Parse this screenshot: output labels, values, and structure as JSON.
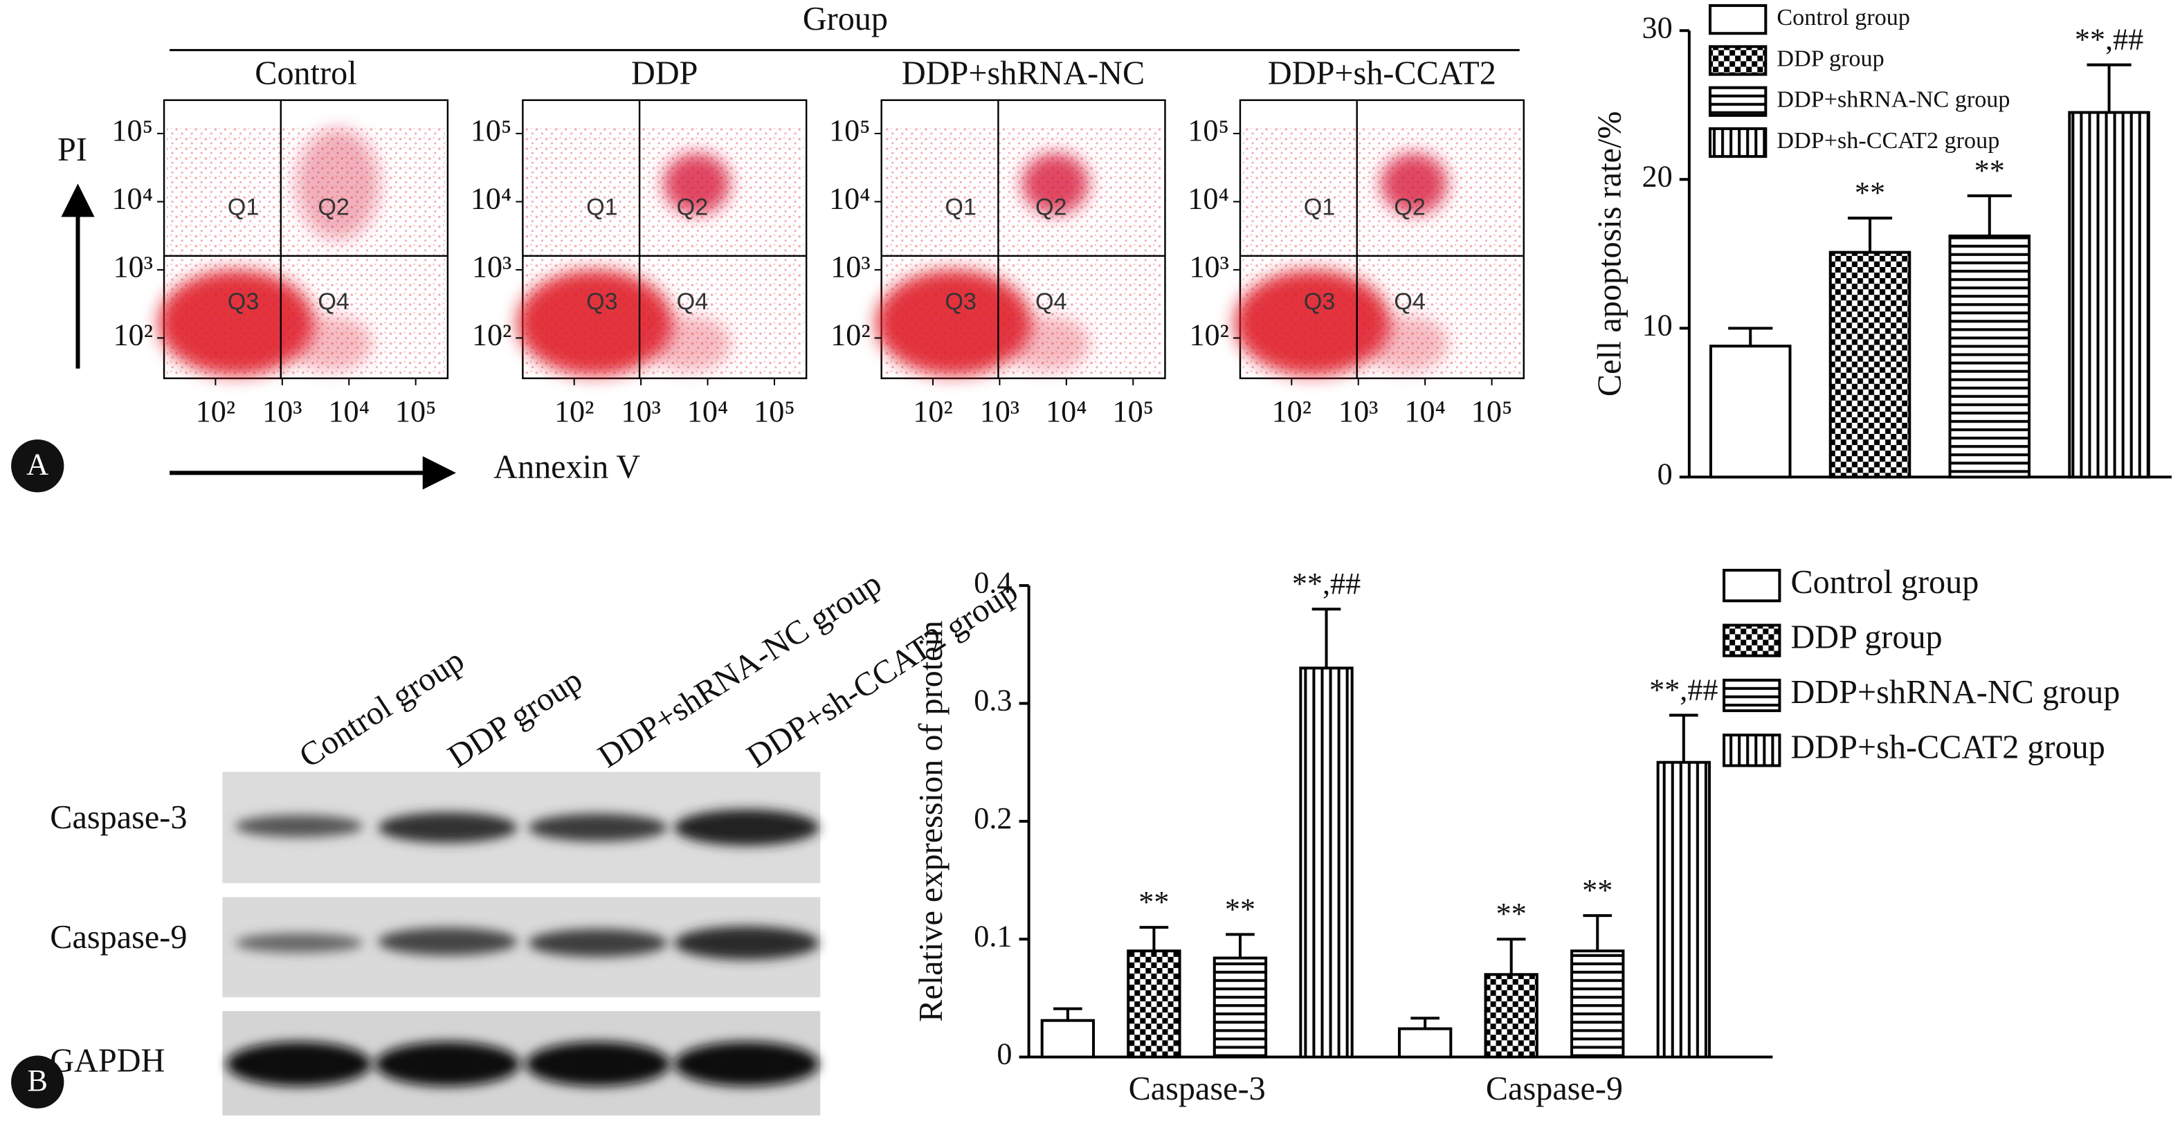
{
  "panel_labels": [
    "A",
    "B"
  ],
  "flow": {
    "group_label": "Group",
    "x_label": "Annexin V",
    "y_label": "PI",
    "panels": [
      "Control",
      "DDP",
      "DDP+shRNA-NC",
      "DDP+sh-CCAT2"
    ],
    "quadrants": [
      "Q1",
      "Q2",
      "Q3",
      "Q4"
    ],
    "log_scale": true,
    "xticks": [
      {
        "value": 100,
        "label": "10²"
      },
      {
        "value": 1000,
        "label": "10³"
      },
      {
        "value": 10000,
        "label": "10⁴"
      },
      {
        "value": 100000,
        "label": "10⁵"
      }
    ],
    "yticks": [
      {
        "value": 100,
        "label": "10²"
      },
      {
        "value": 1000,
        "label": "10³"
      },
      {
        "value": 10000,
        "label": "10⁴"
      },
      {
        "value": 100000,
        "label": "10⁵"
      }
    ]
  },
  "blot": {
    "lanes": [
      "Control group",
      "DDP group",
      "DDP+shRNA-NC group",
      "DDP+sh-CCAT2 group"
    ],
    "rows": [
      "Caspase-3",
      "Caspase-9",
      "GAPDH"
    ]
  },
  "chart_data": [
    {
      "type": "bar",
      "y_label": "Cell apoptosis rate/%",
      "categories": [
        null
      ],
      "ylim": [
        0,
        30
      ],
      "yticks": [
        0,
        10,
        20,
        30
      ],
      "series": [
        {
          "name": "Control group",
          "pattern": "none",
          "values": [
            8.8
          ],
          "errors": [
            1.2
          ],
          "annotations": [
            null
          ]
        },
        {
          "name": "DDP group",
          "pattern": "checker",
          "values": [
            15.1
          ],
          "errors": [
            2.3
          ],
          "annotations": [
            "**"
          ]
        },
        {
          "name": "DDP+shRNA-NC group",
          "pattern": "hlines",
          "values": [
            16.2
          ],
          "errors": [
            2.7
          ],
          "annotations": [
            "**"
          ]
        },
        {
          "name": "DDP+sh-CCAT2 group",
          "pattern": "vlines",
          "values": [
            24.5
          ],
          "errors": [
            3.2
          ],
          "annotations": [
            "**,##"
          ]
        }
      ]
    },
    {
      "type": "bar",
      "y_label": "Relative expression of protein",
      "categories": [
        "Caspase-3",
        "Caspase-9"
      ],
      "ylim": [
        0,
        0.4
      ],
      "yticks": [
        0,
        0.1,
        0.2,
        0.3,
        0.4
      ],
      "series": [
        {
          "name": "Control group",
          "pattern": "none",
          "values": [
            0.031,
            0.024
          ],
          "errors": [
            0.01,
            0.009
          ],
          "annotations": [
            null,
            null
          ]
        },
        {
          "name": "DDP group",
          "pattern": "checker",
          "values": [
            0.09,
            0.07
          ],
          "errors": [
            0.02,
            0.03
          ],
          "annotations": [
            "**",
            "**"
          ]
        },
        {
          "name": "DDP+shRNA-NC group",
          "pattern": "hlines",
          "values": [
            0.084,
            0.09
          ],
          "errors": [
            0.02,
            0.03
          ],
          "annotations": [
            "**",
            "**"
          ]
        },
        {
          "name": "DDP+sh-CCAT2 group",
          "pattern": "vlines",
          "values": [
            0.33,
            0.25
          ],
          "errors": [
            0.05,
            0.04
          ],
          "annotations": [
            "**,##",
            "**,##"
          ]
        }
      ]
    }
  ]
}
